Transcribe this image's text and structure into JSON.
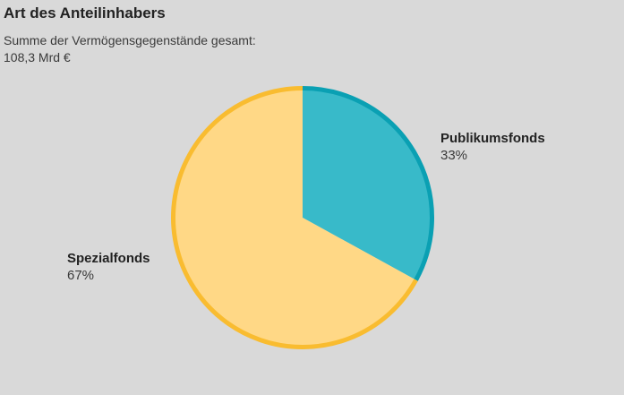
{
  "chart_data": {
    "type": "pie",
    "title": "Art des Anteilinhabers",
    "subtitle_lines": [
      "Summe der Vermögensgegenstände gesamt:",
      "108,3 Mrd €"
    ],
    "slices": [
      {
        "label": "Publikumsfonds",
        "value": 33,
        "value_label": "33%",
        "fill": "#38bac9",
        "stroke": "#0aa0b3"
      },
      {
        "label": "Spezialfonds",
        "value": 67,
        "value_label": "67%",
        "fill": "#ffd886",
        "stroke": "#f9bc30"
      }
    ],
    "background": "#d9d9d9"
  }
}
